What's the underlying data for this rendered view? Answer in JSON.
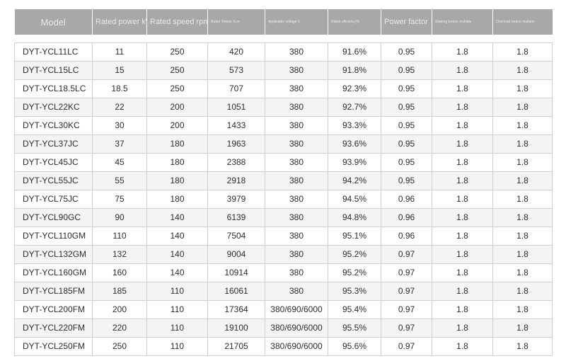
{
  "table": {
    "headers": [
      "Model",
      "Rated power kW",
      "Rated speed rpm",
      "Rated Torque N.m",
      "Applicable voltage V",
      "Rated efficiency%",
      "Power factor",
      "Starting torque multiple",
      "Overload torque multiple"
    ],
    "rows": [
      [
        "DYT-YCL11LC",
        "11",
        "250",
        "420",
        "380",
        "91.6%",
        "0.95",
        "1.8",
        "1.8"
      ],
      [
        "DYT-YCL15LC",
        "15",
        "250",
        "573",
        "380",
        "91.8%",
        "0.95",
        "1.8",
        "1.8"
      ],
      [
        "DYT-YCL18.5LC",
        "18.5",
        "250",
        "707",
        "380",
        "92.3%",
        "0.95",
        "1.8",
        "1.8"
      ],
      [
        "DYT-YCL22KC",
        "22",
        "200",
        "1051",
        "380",
        "92.7%",
        "0.95",
        "1.8",
        "1.8"
      ],
      [
        "DYT-YCL30KC",
        "30",
        "200",
        "1433",
        "380",
        "93.3%",
        "0.95",
        "1.8",
        "1.8"
      ],
      [
        "DYT-YCL37JC",
        "37",
        "180",
        "1963",
        "380",
        "93.6%",
        "0.95",
        "1.8",
        "1.8"
      ],
      [
        "DYT-YCL45JC",
        "45",
        "180",
        "2388",
        "380",
        "93.9%",
        "0.95",
        "1.8",
        "1.8"
      ],
      [
        "DYT-YCL55JC",
        "55",
        "180",
        "2918",
        "380",
        "94.2%",
        "0.95",
        "1.8",
        "1.8"
      ],
      [
        "DYT-YCL75JC",
        "75",
        "180",
        "3979",
        "380",
        "94.5%",
        "0.96",
        "1.8",
        "1.8"
      ],
      [
        "DYT-YCL90GC",
        "90",
        "140",
        "6139",
        "380",
        "94.8%",
        "0.96",
        "1.8",
        "1.8"
      ],
      [
        "DYT-YCL110GM",
        "110",
        "140",
        "7504",
        "380",
        "95.1%",
        "0.96",
        "1.8",
        "1.8"
      ],
      [
        "DYT-YCL132GM",
        "132",
        "140",
        "9004",
        "380",
        "95.2%",
        "0.97",
        "1.8",
        "1.8"
      ],
      [
        "DYT-YCL160GM",
        "160",
        "140",
        "10914",
        "380",
        "95.2%",
        "0.97",
        "1.8",
        "1.8"
      ],
      [
        "DYT-YCL185FM",
        "185",
        "110",
        "16061",
        "380",
        "95.3%",
        "0.97",
        "1.8",
        "1.8"
      ],
      [
        "DYT-YCL200FM",
        "200",
        "110",
        "17364",
        "380/690/6000",
        "95.4%",
        "0.97",
        "1.8",
        "1.8"
      ],
      [
        "DYT-YCL220FM",
        "220",
        "110",
        "19100",
        "380/690/6000",
        "95.5%",
        "0.97",
        "1.8",
        "1.8"
      ],
      [
        "DYT-YCL250FM",
        "250",
        "110",
        "21705",
        "380/690/6000",
        "95.6%",
        "0.97",
        "1.8",
        "1.8"
      ]
    ]
  }
}
